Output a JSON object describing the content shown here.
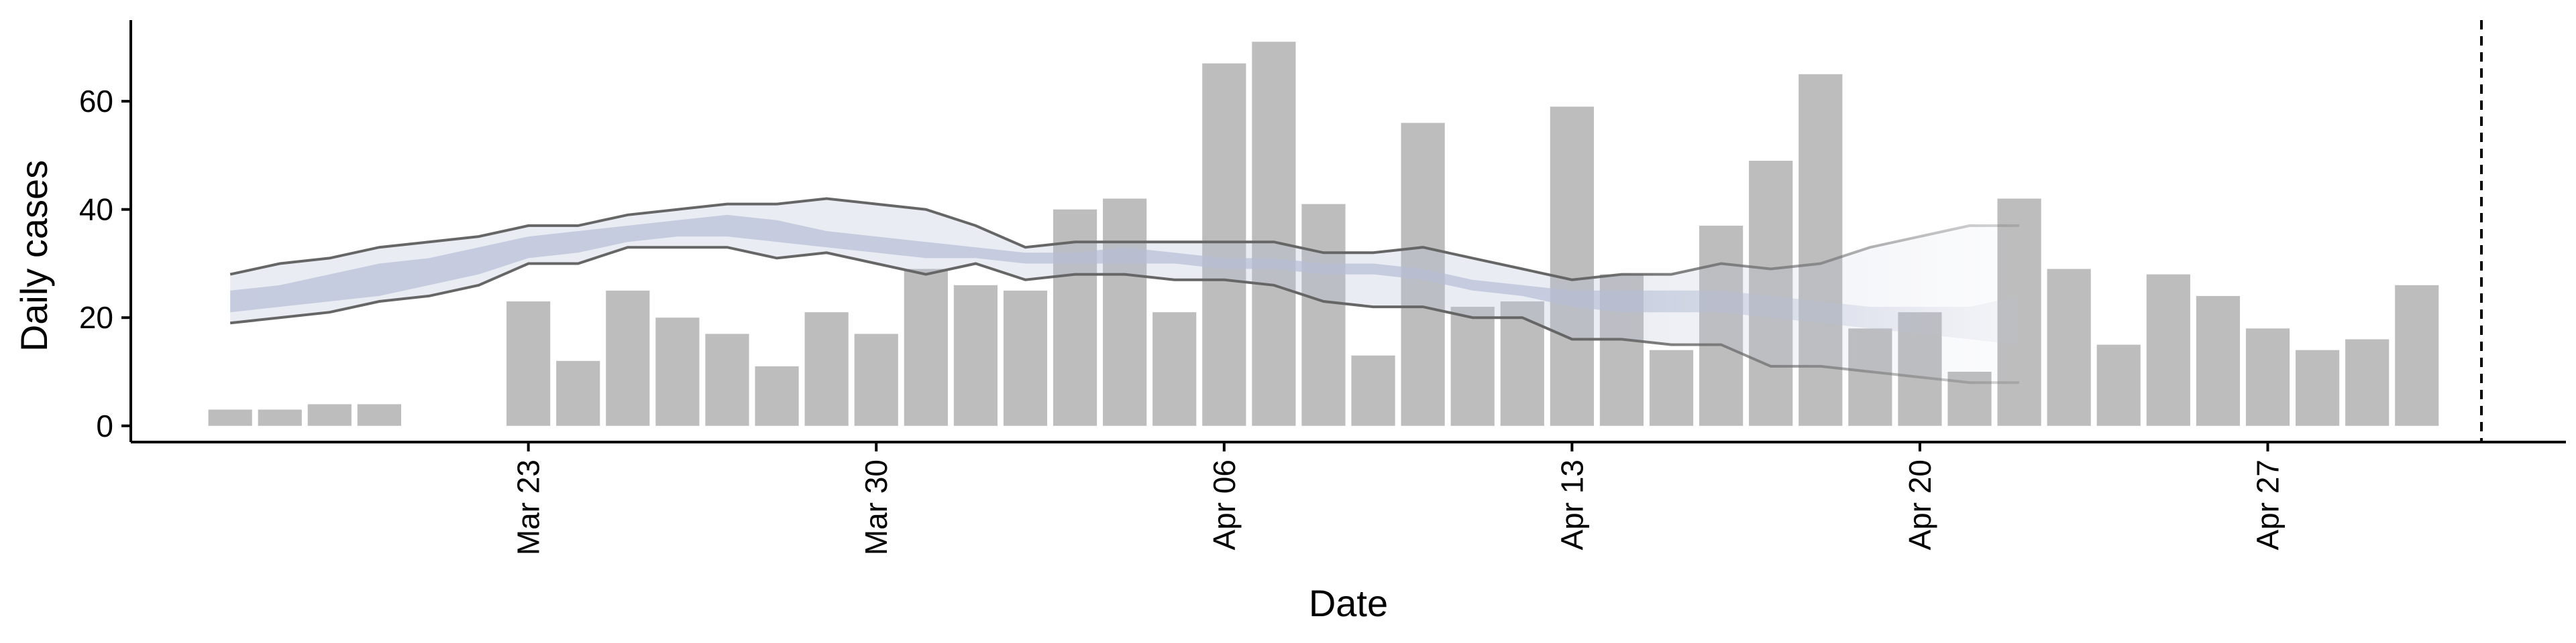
{
  "chart_data": {
    "type": "bar",
    "title": "",
    "xlabel": "Date",
    "ylabel": "Daily cases",
    "ylim": [
      -3,
      75
    ],
    "x_range": [
      "2020-03-15",
      "2020-05-03"
    ],
    "x_ticks": [
      {
        "date": "2020-03-23",
        "label": "Mar 23"
      },
      {
        "date": "2020-03-30",
        "label": "Mar 30"
      },
      {
        "date": "2020-04-06",
        "label": "Apr 06"
      },
      {
        "date": "2020-04-13",
        "label": "Apr 13"
      },
      {
        "date": "2020-04-20",
        "label": "Apr 20"
      },
      {
        "date": "2020-04-27",
        "label": "Apr 27"
      }
    ],
    "y_ticks": [
      0,
      20,
      40,
      60
    ],
    "grid": false,
    "bars": {
      "color": "#bdbdbd",
      "dates": [
        "2020-03-17",
        "2020-03-18",
        "2020-03-19",
        "2020-03-20",
        "2020-03-21",
        "2020-03-22",
        "2020-03-23",
        "2020-03-24",
        "2020-03-25",
        "2020-03-26",
        "2020-03-27",
        "2020-03-28",
        "2020-03-29",
        "2020-03-30",
        "2020-03-31",
        "2020-04-01",
        "2020-04-02",
        "2020-04-03",
        "2020-04-04",
        "2020-04-05",
        "2020-04-06",
        "2020-04-07",
        "2020-04-08",
        "2020-04-09",
        "2020-04-10",
        "2020-04-11",
        "2020-04-12",
        "2020-04-13",
        "2020-04-14",
        "2020-04-15",
        "2020-04-16",
        "2020-04-17",
        "2020-04-18",
        "2020-04-19",
        "2020-04-20",
        "2020-04-21",
        "2020-04-22",
        "2020-04-23",
        "2020-04-24",
        "2020-04-25",
        "2020-04-26",
        "2020-04-27",
        "2020-04-28",
        "2020-04-29",
        "2020-04-30",
        "2020-05-01"
      ],
      "values": [
        3,
        3,
        4,
        4,
        0,
        0,
        23,
        12,
        25,
        20,
        17,
        11,
        21,
        17,
        29,
        26,
        25,
        40,
        42,
        21,
        67,
        71,
        41,
        13,
        56,
        22,
        23,
        59,
        28,
        14,
        37,
        49,
        65,
        18,
        21,
        10,
        42,
        29,
        15,
        28,
        24,
        18,
        14,
        16,
        26,
        0
      ]
    },
    "estimate": {
      "dates": [
        "2020-03-17",
        "2020-03-18",
        "2020-03-19",
        "2020-03-20",
        "2020-03-21",
        "2020-03-22",
        "2020-03-23",
        "2020-03-24",
        "2020-03-25",
        "2020-03-26",
        "2020-03-27",
        "2020-03-28",
        "2020-03-29",
        "2020-03-30",
        "2020-03-31",
        "2020-04-01",
        "2020-04-02",
        "2020-04-03",
        "2020-04-04",
        "2020-04-05",
        "2020-04-06",
        "2020-04-07",
        "2020-04-08",
        "2020-04-09",
        "2020-04-10",
        "2020-04-11",
        "2020-04-12",
        "2020-04-13",
        "2020-04-14",
        "2020-04-15",
        "2020-04-16",
        "2020-04-17",
        "2020-04-18",
        "2020-04-19",
        "2020-04-20",
        "2020-04-21",
        "2020-04-22"
      ],
      "upper_90": [
        28,
        30,
        31,
        33,
        34,
        35,
        37,
        37,
        39,
        40,
        41,
        41,
        42,
        41,
        40,
        37,
        33,
        34,
        34,
        34,
        34,
        34,
        32,
        32,
        33,
        31,
        29,
        27,
        28,
        28,
        30,
        29,
        30,
        33,
        35,
        37,
        37
      ],
      "lower_90": [
        19,
        20,
        21,
        23,
        24,
        26,
        30,
        30,
        33,
        33,
        33,
        31,
        32,
        30,
        28,
        30,
        27,
        28,
        28,
        27,
        27,
        26,
        23,
        22,
        22,
        20,
        20,
        16,
        16,
        15,
        15,
        11,
        11,
        10,
        9,
        8,
        8
      ],
      "upper_50": [
        25,
        26,
        28,
        30,
        31,
        33,
        35,
        36,
        37,
        38,
        39,
        38,
        36,
        35,
        34,
        33,
        32,
        32,
        33,
        32,
        31,
        31,
        30,
        30,
        29,
        27,
        26,
        25,
        25,
        25,
        25,
        24,
        23,
        22,
        22,
        22,
        24
      ],
      "lower_50": [
        21,
        22,
        23,
        24,
        26,
        28,
        31,
        32,
        34,
        35,
        35,
        34,
        33,
        32,
        31,
        31,
        30,
        30,
        30,
        30,
        29,
        29,
        28,
        28,
        27,
        25,
        24,
        22,
        21,
        21,
        21,
        20,
        19,
        18,
        17,
        16,
        15
      ],
      "line_color": "#666666",
      "band_color": "#b7bfd6"
    },
    "marker_line": {
      "date": "2020-05-01",
      "style": "dashed"
    }
  }
}
